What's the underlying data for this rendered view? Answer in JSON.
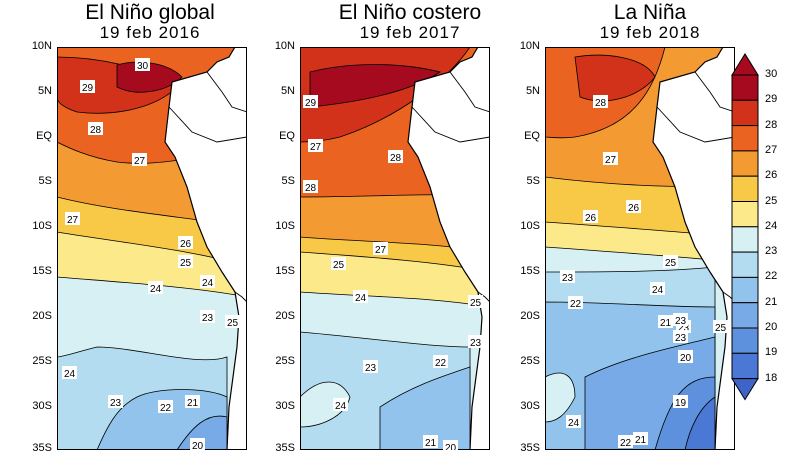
{
  "panels": [
    {
      "title": "El Niño global",
      "date": "19  feb  2016"
    },
    {
      "title": "El Niño costero",
      "date": "19  feb  2017"
    },
    {
      "title": "La Niña",
      "date": "19  feb  2018"
    }
  ],
  "lat_labels": [
    "10N",
    "5N",
    "EQ",
    "5S",
    "10S",
    "15S",
    "20S",
    "25S",
    "30S",
    "35S"
  ],
  "colorbar": {
    "levels": [
      30,
      29,
      28,
      27,
      26,
      25,
      24,
      23,
      22,
      21,
      20,
      19,
      18
    ],
    "colors": [
      "#a50a1e",
      "#d23219",
      "#ea6321",
      "#f39a32",
      "#f8c847",
      "#fbe98a",
      "#d7f0f3",
      "#b3dcf0",
      "#92c3ec",
      "#77aae6",
      "#5e91dd",
      "#4a78d4",
      "#3f64c8"
    ]
  },
  "contour_labels": [
    [
      "30",
      "29",
      "28",
      "27",
      "27",
      "26",
      "25",
      "24",
      "24",
      "23",
      "25",
      "24",
      "23",
      "22",
      "21",
      "20"
    ],
    [
      "29",
      "27",
      "28",
      "28",
      "27",
      "25",
      "24",
      "23",
      "25",
      "23",
      "22",
      "24",
      "21",
      "20"
    ],
    [
      "28",
      "27",
      "26",
      "26",
      "25",
      "23",
      "24",
      "23",
      "22",
      "21",
      "23",
      "25",
      "20",
      "19",
      "23",
      "24",
      "22",
      "21"
    ]
  ]
}
